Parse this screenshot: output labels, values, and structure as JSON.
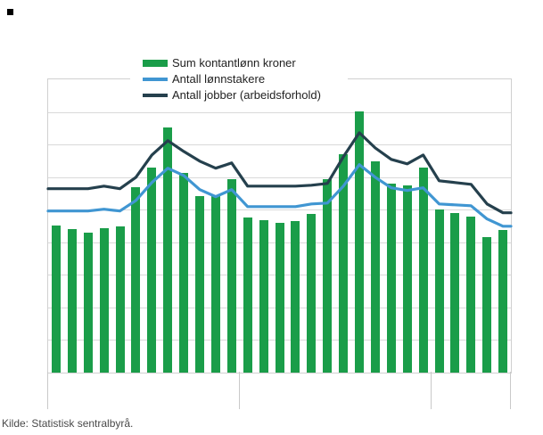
{
  "page": {
    "source_note": "Kilde: Statistisk sentralbyrå."
  },
  "legend": {
    "items": [
      {
        "label": "Sum kontantlønn kroner",
        "type": "bar",
        "color": "#1a9d49"
      },
      {
        "label": "Antall lønnstakere",
        "type": "line",
        "color": "#4096d2"
      },
      {
        "label": "Antall jobber (arbeidsforhold)",
        "type": "line",
        "color": "#25404d"
      }
    ]
  },
  "chart_data": {
    "type": "combo",
    "title": "",
    "xlabel": "",
    "ylabel": "",
    "x_axis": {
      "periods": 29,
      "tick_boundaries": [
        0,
        12,
        24,
        29
      ],
      "tick_labels_visible": false
    },
    "y_axis": {
      "gridline_count": 10,
      "tick_labels_visible": false,
      "unit": "percent of plot height (axis labels not visible in screenshot)",
      "range": [
        0,
        100
      ]
    },
    "series": [
      {
        "name": "Sum kontantlønn kroner",
        "type": "bar",
        "color": "#1a9d49",
        "values": [
          50.2,
          48.8,
          47.6,
          49.3,
          50.0,
          63.2,
          70.0,
          83.6,
          68.2,
          60.3,
          60.5,
          66.0,
          53.0,
          52.1,
          51.1,
          51.7,
          54.2,
          66.0,
          74.5,
          89.1,
          72.1,
          64.4,
          63.8,
          70.0,
          55.7,
          54.5,
          53.3,
          46.3,
          48.7
        ]
      },
      {
        "name": "Antall lønnstakere",
        "type": "line",
        "color": "#4096d2",
        "values": [
          55.1,
          55.1,
          55.1,
          55.7,
          55.1,
          58.7,
          64.8,
          69.7,
          67.2,
          62.4,
          60.0,
          62.4,
          56.6,
          56.6,
          56.6,
          56.6,
          57.5,
          57.8,
          63.6,
          70.9,
          66.6,
          63.0,
          62.1,
          63.0,
          57.5,
          57.2,
          56.9,
          52.4,
          49.9
        ]
      },
      {
        "name": "Antall jobber (arbeidsforhold)",
        "type": "line",
        "color": "#25404d",
        "values": [
          62.7,
          62.7,
          62.7,
          63.6,
          62.7,
          66.6,
          74.2,
          79.1,
          75.4,
          72.1,
          69.7,
          71.5,
          63.6,
          63.6,
          63.6,
          63.6,
          63.9,
          64.5,
          73.6,
          81.8,
          76.6,
          72.7,
          71.2,
          74.2,
          65.4,
          64.8,
          64.2,
          57.5,
          54.5
        ]
      }
    ],
    "legend_position": "top-center",
    "grid": "horizontal-only"
  },
  "colors": {
    "grid": "#d9d9d9",
    "frame": "#d0d0d0",
    "tick": "#c9c9c9",
    "legend_text": "#222222",
    "source_text": "#4a4a4a"
  }
}
